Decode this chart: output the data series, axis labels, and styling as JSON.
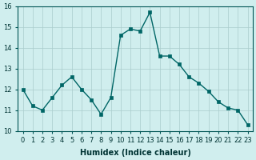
{
  "x": [
    0,
    1,
    2,
    3,
    4,
    5,
    6,
    7,
    8,
    9,
    10,
    11,
    12,
    13,
    14,
    15,
    16,
    17,
    18,
    19,
    20,
    21,
    22,
    23
  ],
  "y": [
    12.0,
    11.2,
    11.0,
    11.6,
    12.2,
    12.6,
    12.0,
    11.5,
    10.8,
    11.6,
    14.6,
    14.9,
    14.8,
    15.7,
    13.6,
    13.6,
    13.2,
    12.6,
    12.3,
    11.9,
    11.4,
    11.1,
    11.0,
    10.3
  ],
  "xlabel": "Humidex (Indice chaleur)",
  "ylabel": "",
  "ylim": [
    10,
    16
  ],
  "yticks": [
    10,
    11,
    12,
    13,
    14,
    15,
    16
  ],
  "xlim": [
    -0.5,
    23.5
  ],
  "xticks": [
    0,
    1,
    2,
    3,
    4,
    5,
    6,
    7,
    8,
    9,
    10,
    11,
    12,
    13,
    14,
    15,
    16,
    17,
    18,
    19,
    20,
    21,
    22,
    23
  ],
  "line_color": "#006666",
  "marker_color": "#006666",
  "bg_color": "#d0eeee",
  "grid_color": "#aacccc",
  "axis_fontsize": 7,
  "tick_fontsize": 6
}
